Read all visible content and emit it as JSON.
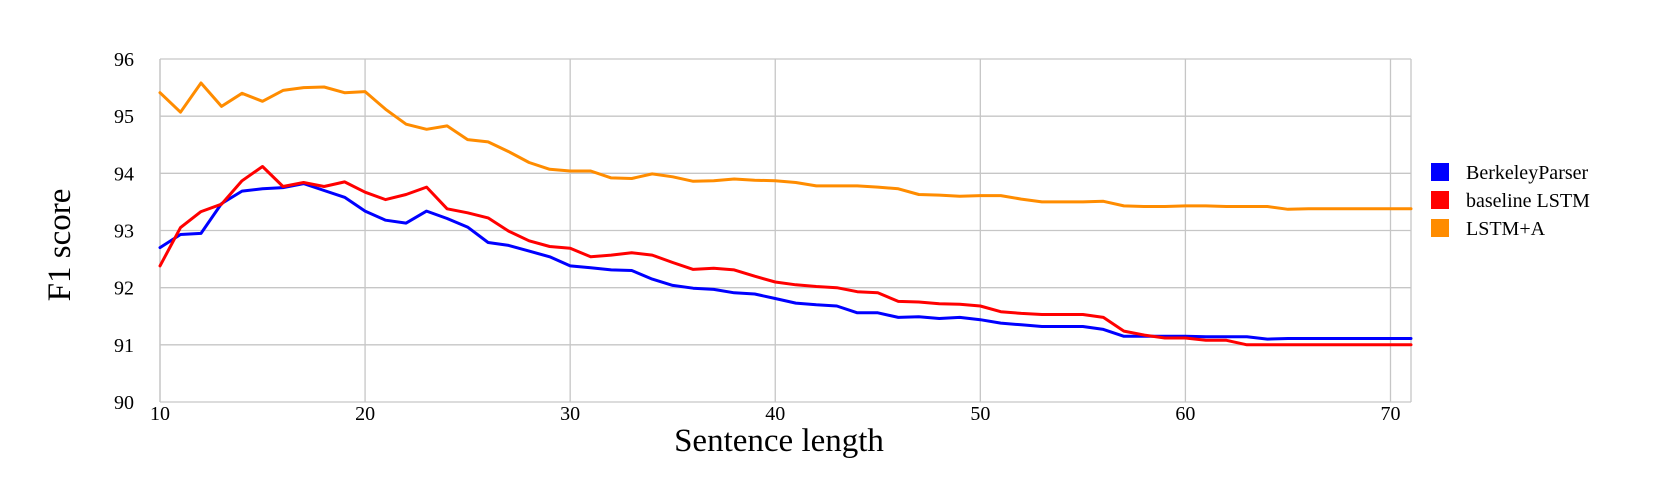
{
  "chart_data": {
    "type": "line",
    "xlabel": "Sentence length",
    "ylabel": "F1 score",
    "xlim": [
      10,
      71
    ],
    "ylim": [
      90,
      96
    ],
    "xticks": [
      10,
      20,
      30,
      40,
      50,
      60,
      70
    ],
    "yticks": [
      90,
      91,
      92,
      93,
      94,
      95,
      96
    ],
    "grid": true,
    "legend_position": "right",
    "x": [
      10,
      11,
      12,
      13,
      14,
      15,
      16,
      17,
      18,
      19,
      20,
      21,
      22,
      23,
      24,
      25,
      26,
      27,
      28,
      29,
      30,
      31,
      32,
      33,
      34,
      35,
      36,
      37,
      38,
      39,
      40,
      41,
      42,
      43,
      44,
      45,
      46,
      47,
      48,
      49,
      50,
      51,
      52,
      53,
      54,
      55,
      56,
      57,
      58,
      59,
      60,
      61,
      62,
      63,
      64,
      65,
      66,
      67,
      68,
      69,
      70,
      71
    ],
    "series": [
      {
        "name": "BerkeleyParser",
        "color": "#0000ff",
        "values": [
          92.7,
          92.93,
          92.95,
          93.47,
          93.69,
          93.73,
          93.75,
          93.82,
          93.7,
          93.58,
          93.34,
          93.18,
          93.13,
          93.34,
          93.21,
          93.06,
          92.79,
          92.74,
          92.64,
          92.54,
          92.38,
          92.35,
          92.31,
          92.3,
          92.15,
          92.04,
          91.99,
          91.97,
          91.91,
          91.89,
          91.81,
          91.73,
          91.7,
          91.68,
          91.56,
          91.56,
          91.48,
          91.49,
          91.46,
          91.48,
          91.44,
          91.38,
          91.35,
          91.32,
          91.32,
          91.32,
          91.27,
          91.15,
          91.15,
          91.15,
          91.15,
          91.14,
          91.14,
          91.14,
          91.1,
          91.11,
          91.11,
          91.11,
          91.11,
          91.11,
          91.11,
          91.11
        ]
      },
      {
        "name": "baseline LSTM",
        "color": "#ff0000",
        "values": [
          92.38,
          93.05,
          93.33,
          93.46,
          93.87,
          94.12,
          93.77,
          93.84,
          93.77,
          93.85,
          93.67,
          93.54,
          93.63,
          93.76,
          93.38,
          93.31,
          93.22,
          92.99,
          92.82,
          92.72,
          92.69,
          92.54,
          92.57,
          92.61,
          92.57,
          92.44,
          92.32,
          92.34,
          92.31,
          92.2,
          92.1,
          92.05,
          92.02,
          92.0,
          91.93,
          91.91,
          91.76,
          91.75,
          91.72,
          91.71,
          91.68,
          91.58,
          91.55,
          91.53,
          91.53,
          91.53,
          91.48,
          91.24,
          91.17,
          91.12,
          91.12,
          91.08,
          91.08,
          91.0,
          91.0,
          91.0,
          91.0,
          91.0,
          91.0,
          91.0,
          91.0,
          91.0
        ]
      },
      {
        "name": "LSTM+A",
        "color": "#ff8c00",
        "values": [
          95.41,
          95.07,
          95.58,
          95.17,
          95.4,
          95.26,
          95.45,
          95.5,
          95.51,
          95.41,
          95.43,
          95.12,
          94.86,
          94.77,
          94.83,
          94.59,
          94.55,
          94.38,
          94.19,
          94.07,
          94.04,
          94.04,
          93.92,
          93.91,
          93.99,
          93.94,
          93.86,
          93.87,
          93.9,
          93.88,
          93.87,
          93.84,
          93.78,
          93.78,
          93.78,
          93.76,
          93.73,
          93.63,
          93.62,
          93.6,
          93.61,
          93.61,
          93.55,
          93.5,
          93.5,
          93.5,
          93.51,
          93.43,
          93.42,
          93.42,
          93.43,
          93.43,
          93.42,
          93.42,
          93.42,
          93.37,
          93.38,
          93.38,
          93.38,
          93.38,
          93.38,
          93.38
        ]
      }
    ]
  }
}
